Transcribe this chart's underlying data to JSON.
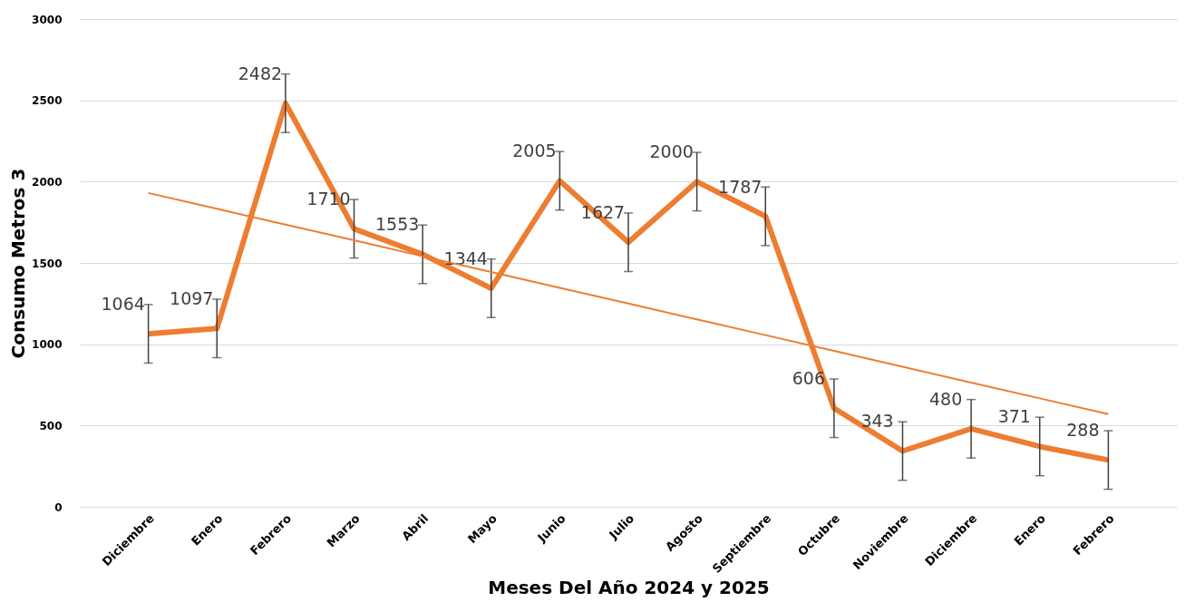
{
  "chart_data": {
    "type": "line",
    "xlabel": "Meses Del Año 2024  y  2025",
    "ylabel": "Consumo Metros 3",
    "categories": [
      "Diciembre",
      "Enero",
      "Febrero",
      "Marzo",
      "Abril",
      "Mayo",
      "Junio",
      "Julio",
      "Agosto",
      "Septiembre",
      "Octubre",
      "Noviembre",
      "Diciembre",
      "Enero",
      "Febrero"
    ],
    "series": [
      {
        "color": "#ed7d31",
        "values": [
          1064,
          1097,
          2482,
          1710,
          1553,
          1344,
          2005,
          1627,
          2000,
          1787,
          606,
          343,
          480,
          371,
          288
        ],
        "errors": [
          180,
          180,
          180,
          180,
          180,
          180,
          180,
          180,
          180,
          180,
          180,
          180,
          180,
          180,
          180
        ],
        "value_labels": [
          "1064",
          "1097",
          "2482",
          "1710",
          "1553",
          "1344",
          "2005",
          "1627",
          "2000",
          "1787",
          "606",
          "343",
          "480",
          "371",
          "288"
        ]
      },
      {
        "type": "line",
        "color": "#ed7d31",
        "values": [
          1930,
          1833,
          1736,
          1639,
          1541,
          1444,
          1347,
          1250,
          1153,
          1056,
          959,
          861,
          764,
          667,
          570
        ]
      }
    ],
    "ylim": [
      0,
      3000
    ],
    "yticks": [
      0,
      500,
      1000,
      1500,
      2000,
      2500,
      3000
    ],
    "grid": "y",
    "marker": "none",
    "line_style": "solid"
  }
}
